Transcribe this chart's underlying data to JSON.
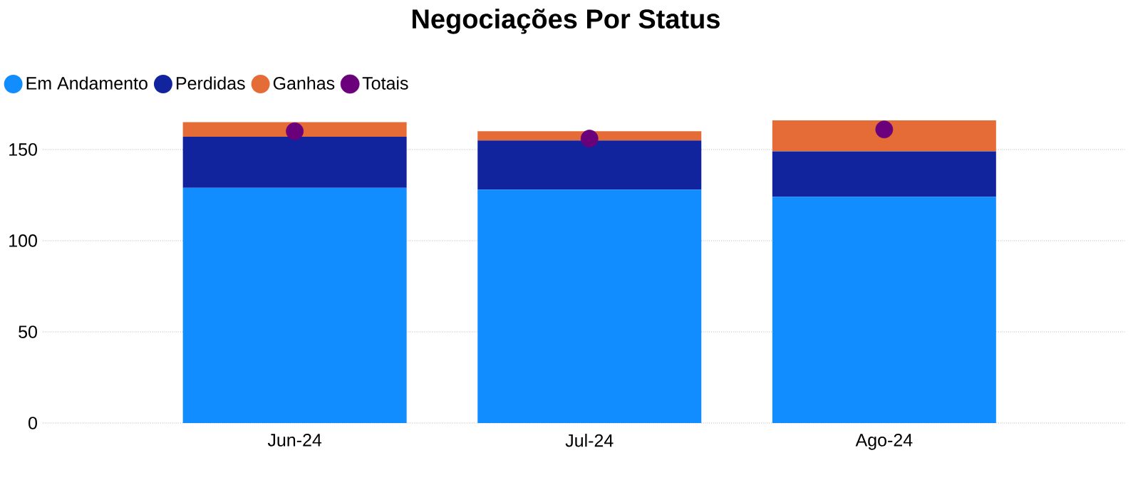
{
  "chart_data": {
    "type": "bar",
    "title": "Negociações Por Status",
    "categories": [
      "Jun-24",
      "Jul-24",
      "Ago-24"
    ],
    "stacked": true,
    "series": [
      {
        "name": "Em Andamento",
        "color": "#118dff",
        "values": [
          129,
          128,
          124
        ]
      },
      {
        "name": "Perdidas",
        "color": "#12239e",
        "values": [
          28,
          27,
          25
        ]
      },
      {
        "name": "Ganhas",
        "color": "#e66c37",
        "values": [
          8,
          5,
          17
        ]
      },
      {
        "name": "Totais",
        "type": "scatter",
        "color": "#6b007b",
        "x": [
          "Jun-24",
          "Jul-24",
          "Ago-24"
        ],
        "values": [
          160,
          156,
          161
        ],
        "marker": "circle"
      }
    ],
    "ylim": [
      0,
      166
    ],
    "yticks": [
      0,
      50,
      100,
      150
    ],
    "grid": "y",
    "legend": "top left"
  }
}
